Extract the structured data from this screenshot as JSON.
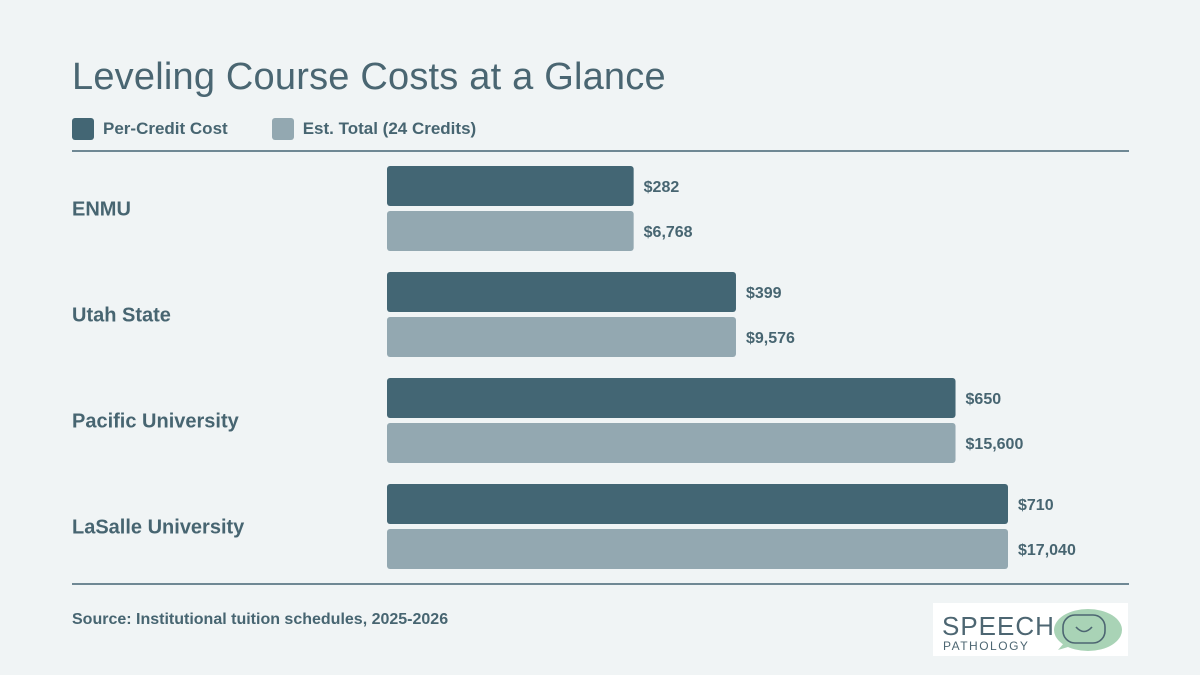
{
  "chart_data": {
    "type": "bar",
    "orientation": "horizontal",
    "title": "Leveling Course Costs at a Glance",
    "categories": [
      "ENMU",
      "Utah State",
      "Pacific University",
      "LaSalle University"
    ],
    "series": [
      {
        "name": "Per-Credit Cost",
        "color": "#436674",
        "values": [
          282,
          399,
          650,
          710
        ],
        "labels": [
          "$282",
          "$399",
          "$650",
          "$710"
        ]
      },
      {
        "name": "Est. Total (24 Credits)",
        "color": "#93a8b1",
        "values": [
          6768,
          9576,
          15600,
          17040
        ],
        "labels": [
          "$6,768",
          "$9,576",
          "$15,600",
          "$17,040"
        ]
      }
    ],
    "grid": false,
    "legend_position": "top-left"
  },
  "footer": {
    "source": "Source: Institutional tuition schedules, 2025-2026"
  },
  "logo": {
    "line1": "SPEECH",
    "line2": "PATHOLOGY",
    "accent_color": "#a9d3b6"
  }
}
